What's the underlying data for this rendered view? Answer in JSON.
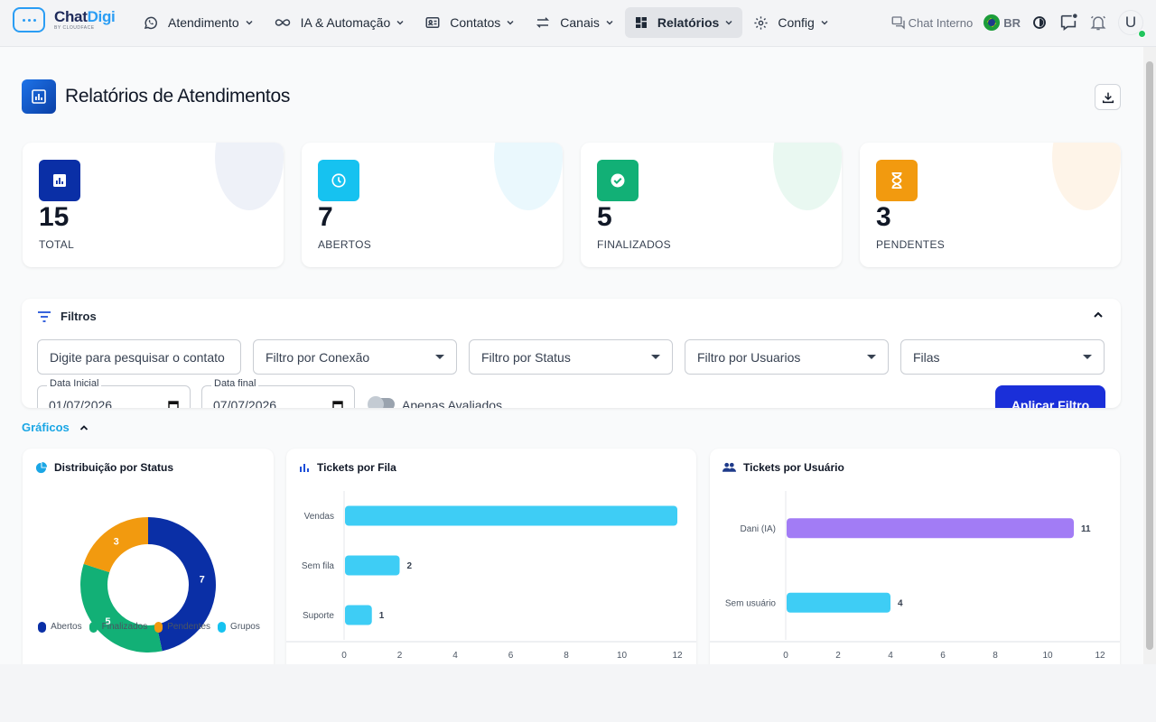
{
  "app": {
    "logo_name_a": "Chat",
    "logo_name_b": "Digi",
    "logo_sub": "BY CLOUDFACE"
  },
  "nav": [
    {
      "label": "Atendimento",
      "icon": "whatsapp-icon"
    },
    {
      "label": "IA & Automação",
      "icon": "infinity-icon"
    },
    {
      "label": "Contatos",
      "icon": "contact-card-icon"
    },
    {
      "label": "Canais",
      "icon": "swap-arrows-icon"
    },
    {
      "label": "Relatórios",
      "icon": "dashboard-icon",
      "active": true
    },
    {
      "label": "Config",
      "icon": "gear-icon"
    }
  ],
  "toolbar": {
    "chat_interno": "Chat Interno",
    "lang": "BR",
    "avatar_initial": "U"
  },
  "page": {
    "title": "Relatórios de Atendimentos"
  },
  "stats": [
    {
      "value": "15",
      "label": "TOTAL",
      "color": "#0a2fa6",
      "deco": "#eef1f8"
    },
    {
      "value": "7",
      "label": "ABERTOS",
      "color": "#16c2f0",
      "deco": "#eaf8fd"
    },
    {
      "value": "5",
      "label": "FINALIZADOS",
      "color": "#12b076",
      "deco": "#e9f8f1"
    },
    {
      "value": "3",
      "label": "PENDENTES",
      "color": "#f29a0f",
      "deco": "#fef4e8"
    }
  ],
  "filters": {
    "title": "Filtros",
    "search_placeholder": "Digite para pesquisar o contato",
    "conexao": "Filtro por Conexão",
    "status": "Filtro por Status",
    "usuarios": "Filtro por Usuarios",
    "filas": "Filas",
    "data_inicial_label": "Data Inicial",
    "data_inicial": "01/07/2026",
    "data_final_label": "Data final",
    "data_final": "07/07/2026",
    "apenas_avaliados": "Apenas Avaliados",
    "apply": "Aplicar Filtro"
  },
  "graficos_label": "Gráficos",
  "chart_data": [
    {
      "type": "pie",
      "title": "Distribuição por Status",
      "categories": [
        "Abertos",
        "Finalizados",
        "Pendentes",
        "Grupos"
      ],
      "values": [
        7,
        5,
        3,
        0
      ],
      "colors": [
        "#0a2fa6",
        "#12b076",
        "#f29a0f",
        "#16c2f0"
      ]
    },
    {
      "type": "bar",
      "orientation": "horizontal",
      "title": "Tickets por Fila",
      "categories": [
        "Vendas",
        "Sem fila",
        "Suporte"
      ],
      "values": [
        12,
        2,
        1
      ],
      "data_labels": [
        "",
        "2",
        "1"
      ],
      "xlim": [
        0,
        12
      ],
      "xticks": [
        0,
        2,
        4,
        6,
        8,
        10,
        12
      ],
      "color": "#3ecdf5"
    },
    {
      "type": "bar",
      "orientation": "horizontal",
      "title": "Tickets por Usuário",
      "categories": [
        "Dani (IA)",
        "Sem usuário"
      ],
      "values": [
        11,
        4
      ],
      "data_labels": [
        "11",
        "4"
      ],
      "xlim": [
        0,
        12
      ],
      "xticks": [
        0,
        2,
        4,
        6,
        8,
        10,
        12
      ],
      "colors": [
        "#a27cf5",
        "#3ecdf5"
      ]
    }
  ]
}
